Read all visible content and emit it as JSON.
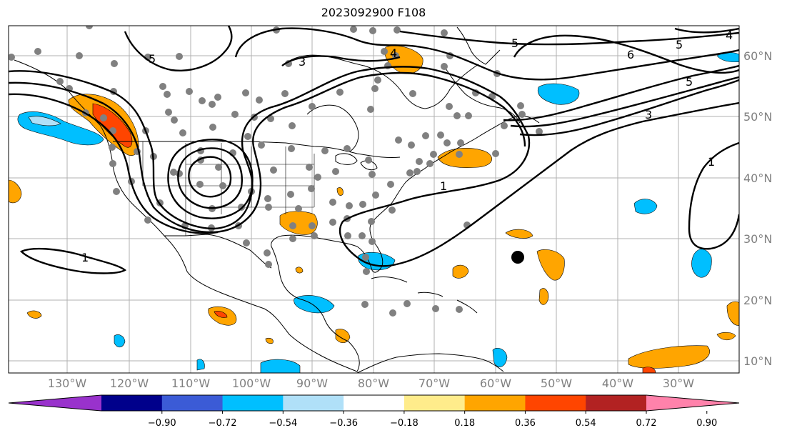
{
  "title": "2023092900 F108",
  "map": {
    "lat_labels": [
      "60°N",
      "50°N",
      "40°N",
      "30°N",
      "20°N",
      "10°N"
    ],
    "lon_labels": [
      "130°W",
      "120°W",
      "110°W",
      "100°W",
      "90°W",
      "80°W",
      "70°W",
      "60°W",
      "50°W",
      "40°W",
      "30°W"
    ],
    "contour_labels": [
      "5",
      "3",
      "4",
      "5",
      "6",
      "5",
      "5",
      "3",
      "4",
      "1",
      "1",
      "1"
    ],
    "colors": {
      "contour": "#000000",
      "coast": "#000000",
      "grid": "#b0b0b0",
      "station": "#808080",
      "storm_marker": "#000000"
    }
  },
  "colorbar": {
    "colors": [
      "#9932cc",
      "#00008b",
      "#3b5bd6",
      "#00bfff",
      "#b0e0f8",
      "#ffffff",
      "#ffec8b",
      "#ffa500",
      "#ff4500",
      "#b22222",
      "#ff82ab"
    ],
    "labels": [
      "−0.90",
      "−0.72",
      "−0.54",
      "−0.36",
      "−0.18",
      "0.18",
      "0.36",
      "0.54",
      "0.72",
      "0.90"
    ]
  }
}
